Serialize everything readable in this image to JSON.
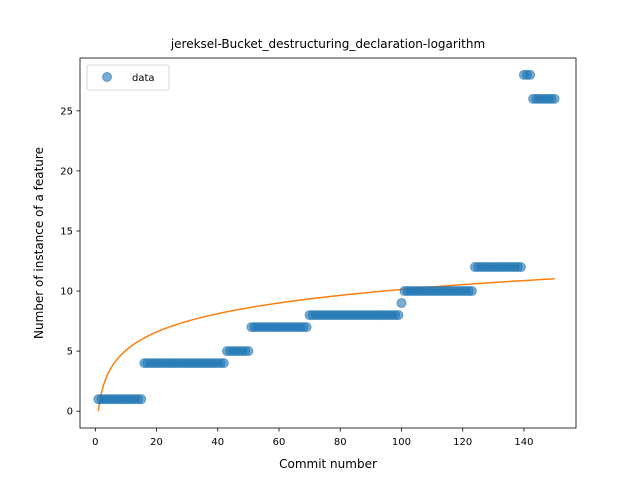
{
  "chart_data": {
    "type": "scatter",
    "title": "jereksel-Bucket_destructuring_declaration-logarithm",
    "xlabel": "Commit number",
    "ylabel": "Number of instance of a feature",
    "xlim": [
      -5,
      157
    ],
    "ylim": [
      -1.4,
      29.4
    ],
    "xticks": [
      0,
      20,
      40,
      60,
      80,
      100,
      120,
      140
    ],
    "yticks": [
      0,
      5,
      10,
      15,
      20,
      25
    ],
    "grid": false,
    "legend": {
      "placement": "top-left",
      "entries": [
        "data"
      ]
    },
    "colors": {
      "scatter": "#1f77b4",
      "fit": "#ff7f0e"
    },
    "series": [
      {
        "name": "data",
        "kind": "scatter",
        "segments": [
          {
            "x_from": 1,
            "x_to": 15,
            "y": 1
          },
          {
            "x_from": 16,
            "x_to": 42,
            "y": 4
          },
          {
            "x_from": 43,
            "x_to": 50,
            "y": 5
          },
          {
            "x_from": 51,
            "x_to": 69,
            "y": 7
          },
          {
            "x_from": 70,
            "x_to": 99,
            "y": 8
          },
          {
            "x_from": 100,
            "x_to": 100,
            "y": 9
          },
          {
            "x_from": 101,
            "x_to": 123,
            "y": 10
          },
          {
            "x_from": 124,
            "x_to": 139,
            "y": 12
          },
          {
            "x_from": 140,
            "x_to": 142,
            "y": 28
          },
          {
            "x_from": 143,
            "x_to": 150,
            "y": 26
          }
        ]
      },
      {
        "kind": "line",
        "model": "logarithmic",
        "a": 2.2,
        "b": 0,
        "x_range": [
          1,
          150
        ]
      }
    ]
  }
}
